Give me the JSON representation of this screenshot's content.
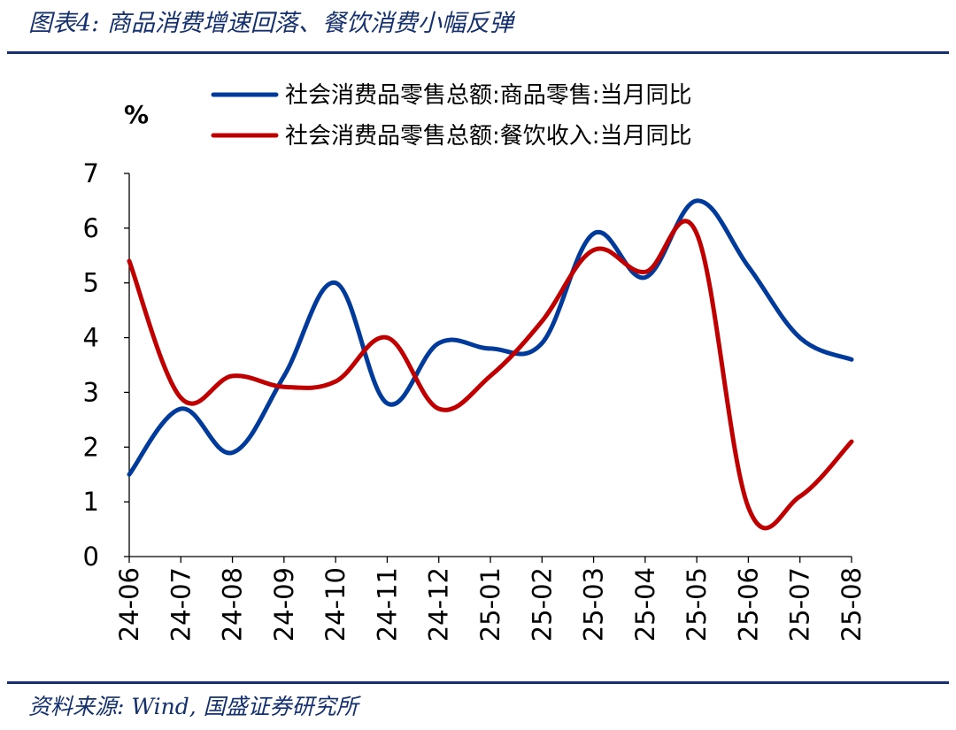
{
  "figure": {
    "title": "图表4:  商品消费增速回落、餐饮消费小幅反弹",
    "source": "资料来源:  Wind, 国盛证券研究所"
  },
  "chart_data": {
    "type": "line",
    "unit_label": "%",
    "x": [
      "24-06",
      "24-07",
      "24-08",
      "24-09",
      "24-10",
      "24-11",
      "24-12",
      "25-01",
      "25-02",
      "25-03",
      "25-04",
      "25-05",
      "25-06",
      "25-07",
      "25-08"
    ],
    "series": [
      {
        "name": "社会消费品零售总额:商品零售:当月同比",
        "color": "#003a9b",
        "values": [
          1.5,
          2.7,
          1.9,
          3.3,
          5.0,
          2.8,
          3.9,
          3.8,
          3.9,
          5.9,
          5.1,
          6.5,
          5.3,
          4.0,
          3.6
        ]
      },
      {
        "name": "社会消费品零售总额:餐饮收入:当月同比",
        "color": "#c00000",
        "values": [
          5.4,
          2.9,
          3.3,
          3.1,
          3.2,
          4.0,
          2.7,
          3.3,
          4.3,
          5.6,
          5.2,
          5.9,
          0.9,
          1.1,
          2.1
        ]
      }
    ],
    "ylim": [
      0,
      7
    ],
    "yticks": [
      "0",
      "1",
      "2",
      "3",
      "4",
      "5",
      "6",
      "7"
    ],
    "grid": false,
    "legend": "top"
  }
}
